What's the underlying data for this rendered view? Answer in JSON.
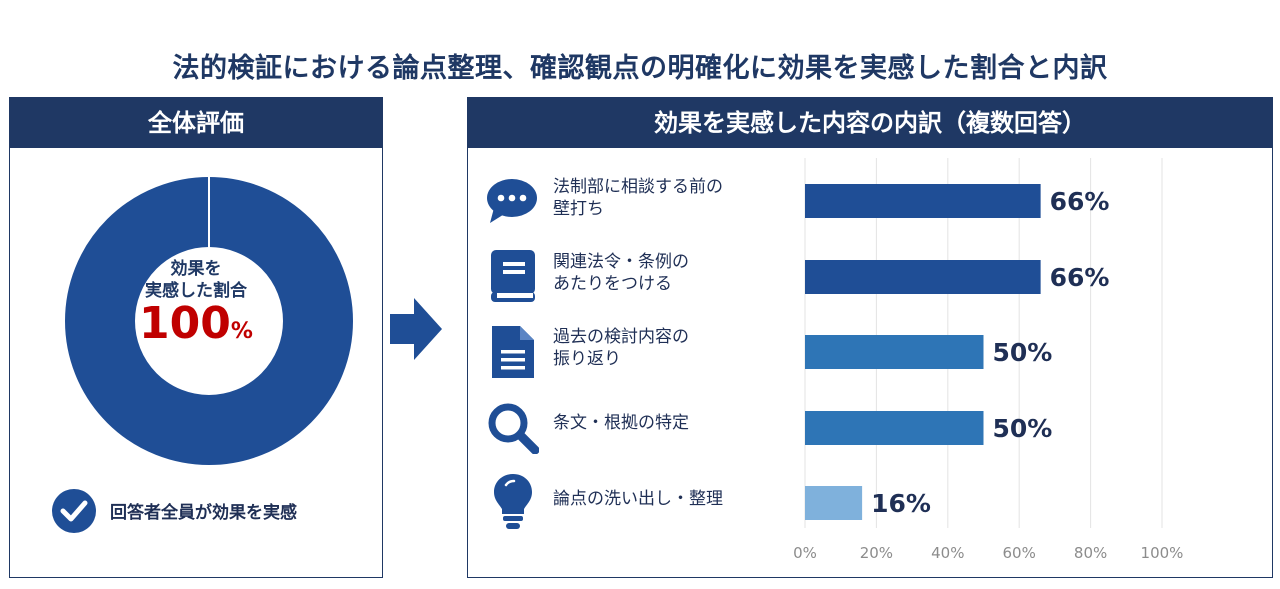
{
  "title": "法的検証における論点整理、確認観点の明確化に効果を実感した割合と内訳",
  "left": {
    "header": "全体評価",
    "donut_label_line1": "効果を",
    "donut_label_line2": "実感した割合",
    "donut_value": "100",
    "donut_unit": "%",
    "donut_percent": 100,
    "check_text": "回答者全員が効果を実感",
    "color": "#1f4e96"
  },
  "right": {
    "header": "効果を実感した内容の内訳（複数回答）"
  },
  "categories": [
    {
      "line1": "法制部に相談する前の",
      "line2": "壁打ち",
      "icon": "chat-bubble-icon"
    },
    {
      "line1": "関連法令・条例の",
      "line2": "あたりをつける",
      "icon": "book-icon"
    },
    {
      "line1": "過去の検討内容の",
      "line2": "振り返り",
      "icon": "document-icon"
    },
    {
      "line1": "条文・根拠の特定",
      "line2": "",
      "icon": "magnifier-icon"
    },
    {
      "line1": "論点の洗い出し・整理",
      "line2": "",
      "icon": "lightbulb-icon"
    }
  ],
  "chart_data": {
    "type": "bar",
    "orientation": "horizontal",
    "title": "効果を実感した内容の内訳（複数回答）",
    "categories": [
      "法制部に相談する前の壁打ち",
      "関連法令・条例のあたりをつける",
      "過去の検討内容の振り返り",
      "条文・根拠の特定",
      "論点の洗い出し・整理"
    ],
    "values": [
      66,
      66,
      50,
      50,
      16
    ],
    "value_labels": [
      "66%",
      "66%",
      "50%",
      "50%",
      "16%"
    ],
    "bar_colors": [
      "#1f4e96",
      "#1f4e96",
      "#2e75b6",
      "#2e75b6",
      "#7fb1dc"
    ],
    "xlim": [
      0,
      100
    ],
    "xticks": [
      "0%",
      "20%",
      "40%",
      "60%",
      "80%",
      "100%"
    ],
    "grid": true
  }
}
